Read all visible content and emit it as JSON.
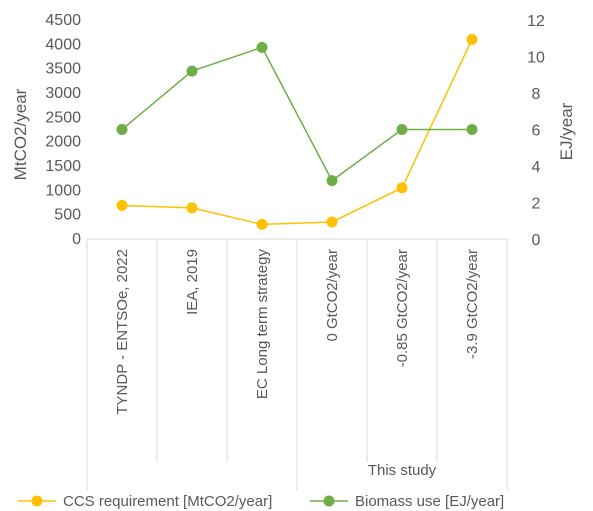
{
  "chart_data": {
    "type": "line",
    "categories": [
      "TYNDP - ENTSOe, 2022",
      "IEA, 2019",
      "EC Long term strategy",
      "0 GtCO2/year",
      "-0.85 GtCO2/year",
      "-3.9 GtCO2/year"
    ],
    "category_group": {
      "label": "This study",
      "start_index": 3,
      "end_index": 5
    },
    "ylabel": "MtCO2/year",
    "y2label": "EJ/year",
    "ylim": [
      0,
      4500
    ],
    "y2lim": [
      0,
      12
    ],
    "y_ticks": [
      "0",
      "500",
      "1000",
      "1500",
      "2000",
      "2500",
      "3000",
      "3500",
      "4000",
      "4500"
    ],
    "y2_ticks": [
      "0",
      "2",
      "4",
      "6",
      "8",
      "10",
      "12"
    ],
    "grid": false,
    "legend_position": "bottom",
    "series": [
      {
        "name": "CCS requirement [MtCO2/year]",
        "axis": "left",
        "color": "#FFC000",
        "values": [
          690,
          640,
          300,
          350,
          1050,
          4100
        ]
      },
      {
        "name": "Biomass use [EJ/year]",
        "axis": "right",
        "color": "#70AD47",
        "values": [
          6.0,
          9.2,
          10.5,
          3.2,
          6.0,
          6.0
        ]
      }
    ]
  }
}
